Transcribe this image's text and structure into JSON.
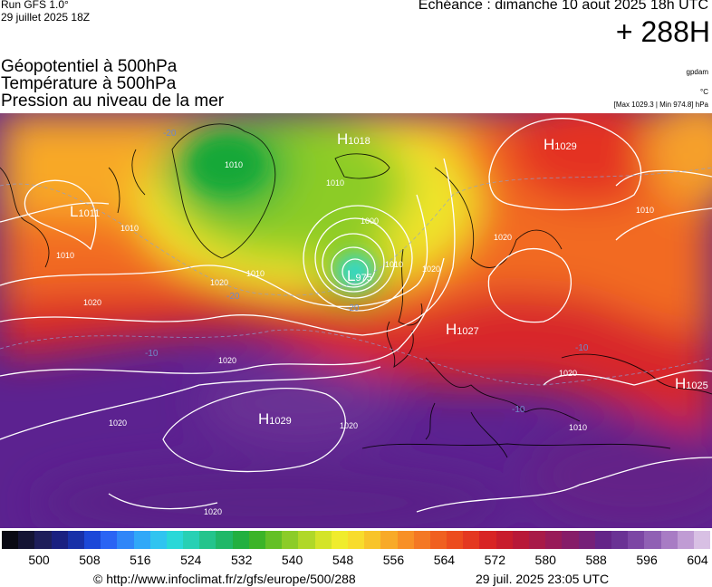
{
  "header": {
    "run_model": "Run GFS 1.0°",
    "run_date": "29 juillet 2025 18Z",
    "valid_time": "Echéance : dimanche 10 aout 2025 18h UTC",
    "lead_time": "+ 288H"
  },
  "titles": {
    "line1": "Géopotentiel à 500hPa",
    "line2": "Température à 500hPa",
    "line3": "Pression au niveau de la mer"
  },
  "units": {
    "geopotential": "gpdam",
    "temperature": "°C",
    "pressure_range": "[Max 1029.3 | Min 974.8] hPa"
  },
  "pressure_centers": [
    {
      "type": "L",
      "value": "1011"
    },
    {
      "type": "H",
      "value": "1018"
    },
    {
      "type": "H",
      "value": "1029"
    },
    {
      "type": "L",
      "value": "975"
    },
    {
      "type": "H",
      "value": "1027"
    },
    {
      "type": "H",
      "value": "1029"
    },
    {
      "type": "H",
      "value": "1025"
    }
  ],
  "isobar_labels": [
    "1010",
    "1010",
    "1010",
    "1010",
    "1000",
    "1010",
    "1020",
    "1010",
    "1020",
    "1020",
    "1020",
    "1020",
    "1020",
    "1020",
    "1010",
    "1020",
    "1010",
    "1020"
  ],
  "temperature_labels": [
    "-20",
    "-20",
    "-20",
    "-10",
    "-10",
    "-10"
  ],
  "colorbar": {
    "colors": [
      "#0a0a14",
      "#141434",
      "#1e1e5a",
      "#1a2080",
      "#1830a8",
      "#1c48d8",
      "#2a64f4",
      "#2f86f8",
      "#30a8f8",
      "#30c4f0",
      "#2ad8d8",
      "#28d0b4",
      "#24c48c",
      "#20b868",
      "#22b040",
      "#3cb428",
      "#64c026",
      "#8ccc28",
      "#b0d828",
      "#d4e428",
      "#f0ec2c",
      "#f8dc2c",
      "#f8c42a",
      "#f8aa28",
      "#f89026",
      "#f47824",
      "#f06020",
      "#ec4c1e",
      "#e43820",
      "#d82424",
      "#c81c2c",
      "#b81838",
      "#a81a48",
      "#981a58",
      "#861c68",
      "#762078",
      "#642488",
      "#6a3294",
      "#7c46a4",
      "#9060b4",
      "#a87cc4",
      "#c09cd4",
      "#d8c0e4"
    ],
    "ticks": [
      "500",
      "508",
      "516",
      "524",
      "532",
      "540",
      "548",
      "556",
      "564",
      "572",
      "580",
      "588",
      "596",
      "604"
    ]
  },
  "footer": {
    "credit": "© http://www.infoclimat.fr/z/gfs/europe/500/288",
    "generated": "29 juil. 2025 23:05 UTC"
  }
}
